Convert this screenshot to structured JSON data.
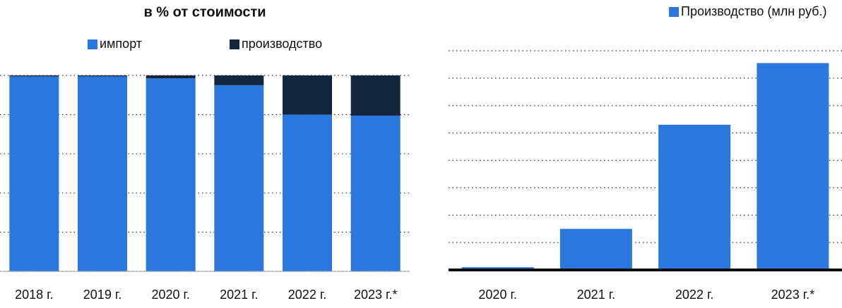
{
  "chart_data": [
    {
      "type": "stacked_bar",
      "title": "в % от стоимости",
      "categories": [
        "2018 г.",
        "2019 г.",
        "2020 г.",
        "2021 г.",
        "2022 г.",
        "2023 г.*"
      ],
      "series": [
        {
          "name": "импорт",
          "color": "#2a78de",
          "values": [
            99.5,
            99.5,
            98.5,
            95,
            80,
            79.5
          ]
        },
        {
          "name": "производство",
          "color": "#14263e",
          "values": [
            0.5,
            0.5,
            1.5,
            5,
            20,
            20.5
          ]
        }
      ],
      "ylim": [
        0,
        100
      ],
      "yticks": [
        0,
        20,
        40,
        60,
        80,
        100
      ],
      "grid": true
    },
    {
      "type": "bar",
      "categories": [
        "2020 г.",
        "2021 г.",
        "2022 г.",
        "2023 г.*"
      ],
      "series": [
        {
          "name": "Производство (млн руб.)",
          "color": "#2a78de",
          "values": [
            0.1,
            1.5,
            5.3,
            7.55
          ]
        }
      ],
      "ylim": [
        0,
        8
      ],
      "yticks": [
        0,
        1,
        2,
        3,
        4,
        5,
        6,
        7,
        8
      ],
      "grid": true
    }
  ]
}
